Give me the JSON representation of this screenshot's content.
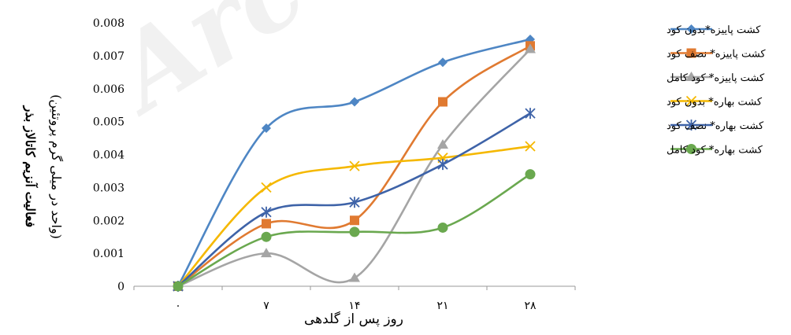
{
  "chart_data": {
    "type": "line",
    "xlabel": "روز پس از گلدهی",
    "ylabel_line1": "فعالیت آنزیم کاتالاز بذر",
    "ylabel_line2": "(واحد در میلی گرم پروتئین)",
    "x_categories": [
      "۰",
      "۷",
      "۱۴",
      "۲۱",
      "۲۸"
    ],
    "y_ticks": [
      "0",
      "0.001",
      "0.002",
      "0.003",
      "0.004",
      "0.005",
      "0.006",
      "0.007",
      "0.008"
    ],
    "ylim": [
      0,
      0.008
    ],
    "grid": false,
    "legend_position": "right",
    "series": [
      {
        "name": "کشت پاییزه*بدون کود",
        "color": "#4E86C4",
        "marker": "diamond",
        "values": [
          0,
          0.0048,
          0.0056,
          0.0068,
          0.0075
        ]
      },
      {
        "name": "کشت پاییزه* نصف کود",
        "color": "#E07A31",
        "marker": "square",
        "values": [
          0,
          0.0019,
          0.002,
          0.0056,
          0.0073
        ]
      },
      {
        "name": "کشت پاییزه* کود کامل",
        "color": "#A5A5A5",
        "marker": "triangle",
        "values": [
          0,
          0.001,
          0.00025,
          0.0043,
          0.0072
        ]
      },
      {
        "name": "کشت بهاره* بدون کود",
        "color": "#F5B800",
        "marker": "x",
        "values": [
          0,
          0.003,
          0.00365,
          0.0039,
          0.00425
        ]
      },
      {
        "name": "کشت بهاره* نصف کود",
        "color": "#3E63A8",
        "marker": "star",
        "values": [
          0,
          0.00225,
          0.00255,
          0.0037,
          0.00525
        ]
      },
      {
        "name": "کشت بهاره* کود کامل",
        "color": "#6AA84F",
        "marker": "circle",
        "values": [
          0,
          0.0015,
          0.00165,
          0.00178,
          0.0034
        ]
      }
    ]
  },
  "watermark": "Arc"
}
